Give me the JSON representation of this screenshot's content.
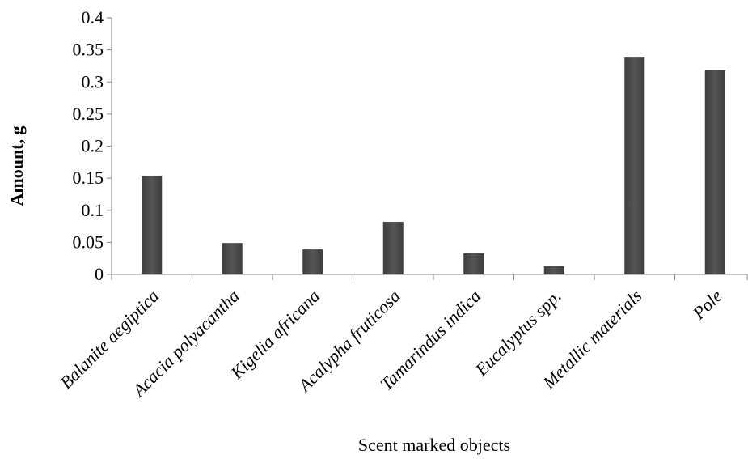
{
  "chart_data": {
    "type": "bar",
    "categories": [
      "Balanite aegiptica",
      "Acacia polyacantha",
      "Kigelia africana",
      "Acalypha fruticosa",
      "Tamarindus indica",
      "Eucalyptus spp.",
      "Metallic materials",
      "Pole"
    ],
    "values": [
      0.154,
      0.049,
      0.039,
      0.082,
      0.033,
      0.013,
      0.338,
      0.318
    ],
    "title": "",
    "xlabel": "Scent marked objects",
    "ylabel": "Amount,  g",
    "ylim": [
      0,
      0.4
    ],
    "yticks": [
      0,
      0.05,
      0.1,
      0.15,
      0.2,
      0.25,
      0.3,
      0.35,
      0.4
    ],
    "ytick_labels": [
      "0",
      "0.05",
      "0.1",
      "0.15",
      "0.2",
      "0.25",
      "0.3",
      "0.35",
      "0.4"
    ],
    "grid": false,
    "legend": "none",
    "bar_color": "#555555"
  }
}
